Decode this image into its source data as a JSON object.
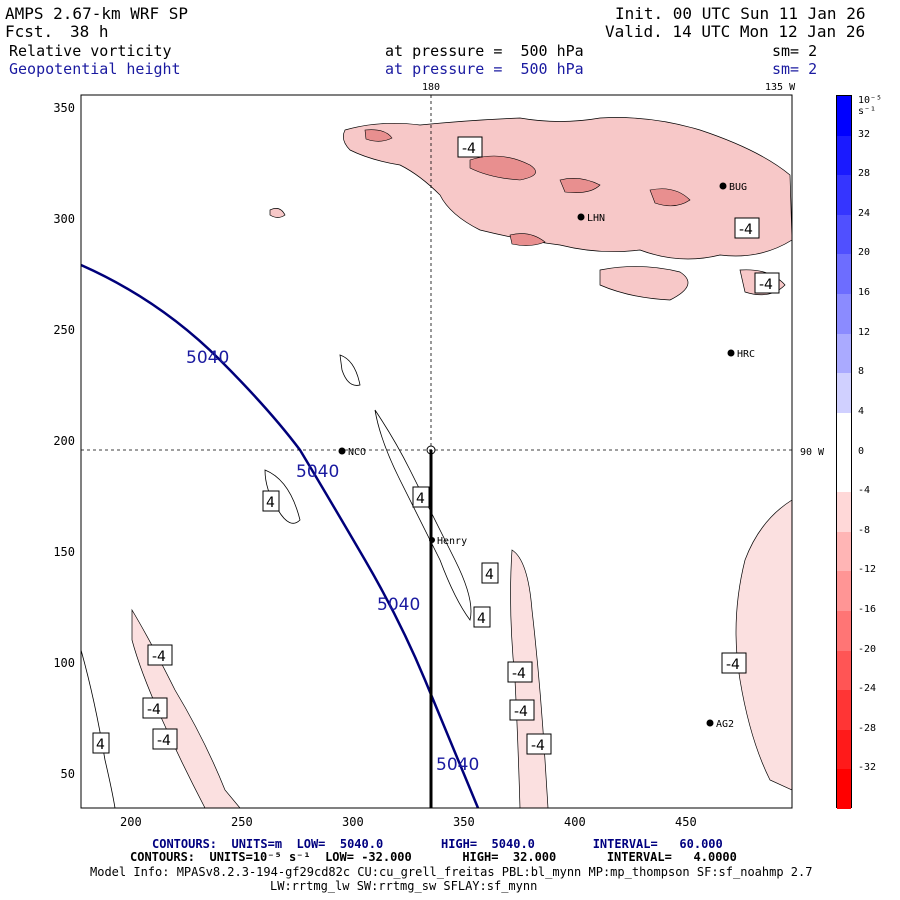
{
  "header": {
    "model": "AMPS 2.67-km WRF SP",
    "fcst_label": "Fcst.",
    "fcst_value": "38 h",
    "init": "Init. 00 UTC Sun 11 Jan 26",
    "valid": "Valid. 14 UTC Mon 12 Jan 26",
    "field1": "Relative vorticity",
    "field1_pressure": "at pressure =  500 hPa",
    "field1_sm": "sm= 2",
    "field2": "Geopotential height",
    "field2_pressure": "at pressure =  500 hPa",
    "field2_sm": "sm= 2"
  },
  "map": {
    "x_ticks": [
      "200",
      "250",
      "300",
      "350",
      "400",
      "450"
    ],
    "y_ticks": [
      "350",
      "300",
      "250",
      "200",
      "150",
      "100",
      "50"
    ],
    "lon_labels": {
      "top_180": "180",
      "top_135w": "135 W",
      "right_90w": "90 W"
    },
    "stations": [
      "NCO",
      "Henry",
      "HRC",
      "AG2",
      "BUG",
      "LHN"
    ],
    "height_contour_labels": [
      "5040",
      "5040",
      "5040",
      "5040"
    ],
    "vorticity_labels": [
      "-4",
      "-4",
      "-4",
      "-4",
      "-4",
      "-4",
      "-4",
      "-4",
      "-4",
      "-4",
      "4",
      "4",
      "4",
      "4",
      "4"
    ]
  },
  "colorbar": {
    "unit": "10⁻⁵ s⁻¹",
    "labels": [
      "32",
      "28",
      "24",
      "20",
      "16",
      "12",
      "8",
      "4",
      "0",
      "-4",
      "-8",
      "-12",
      "-16",
      "-20",
      "-24",
      "-28",
      "-32"
    ],
    "colors_top_to_bottom": [
      "#0000ff",
      "#1a1aff",
      "#3535ff",
      "#5050ff",
      "#6d6dff",
      "#8b8bff",
      "#aaaaff",
      "#d0d0ff",
      "#ffffff",
      "#ffffff",
      "#ffd8d8",
      "#ffb5b5",
      "#ff9595",
      "#ff7575",
      "#ff5555",
      "#ff3535",
      "#ff1a1a",
      "#ff0000"
    ]
  },
  "footer": {
    "contours1": "CONTOURS:  UNITS=m  LOW=  5040.0        HIGH=  5040.0        INTERVAL=   60.000",
    "contours2": "CONTOURS:  UNITS=10⁻⁵ s⁻¹  LOW= -32.000       HIGH=  32.000       INTERVAL=   4.0000",
    "model_info": "Model Info: MPASv8.2.3-194-gf29cd82c CU:cu_grell_freitas PBL:bl_mynn MP:mp_thompson SF:sf_noahmp 2.7",
    "model_info2": "LW:rrtmg_lw SW:rrtmg_sw SFLAY:sf_mynn"
  }
}
